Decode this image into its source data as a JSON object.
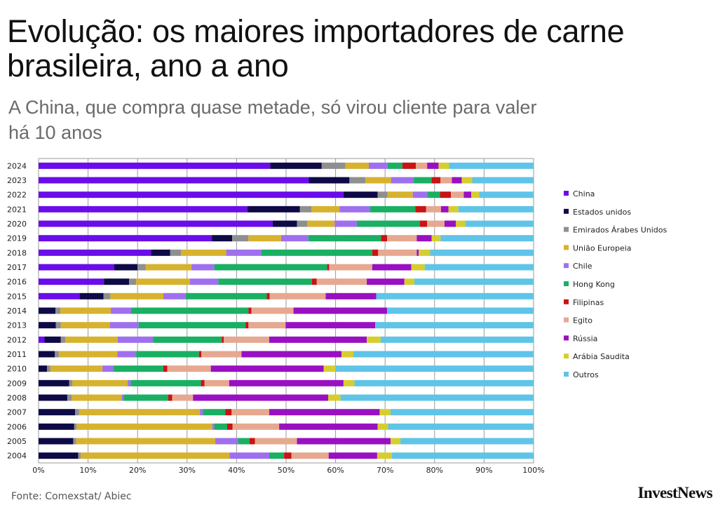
{
  "title": "Evolução: os maiores importadores de carne brasileira, ano a ano",
  "subtitle": "A China, que compra quase metade, só virou cliente para valer há 10 anos",
  "source": "Fonte: Comexstat/ Abiec",
  "brand": "InvestNews",
  "chart_data": {
    "type": "bar",
    "orientation": "horizontal",
    "stacked": "100%",
    "title": "Evolução: os maiores importadores de carne brasileira, ano a ano",
    "xlabel": "",
    "ylabel": "",
    "xlim": [
      0,
      100
    ],
    "x_ticks": [
      "0%",
      "10%",
      "20%",
      "30%",
      "40%",
      "50%",
      "60%",
      "70%",
      "80%",
      "90%",
      "100%"
    ],
    "grid": true,
    "legend_position": "right",
    "categories": [
      "2024",
      "2023",
      "2022",
      "2021",
      "2020",
      "2019",
      "2018",
      "2017",
      "2016",
      "2015",
      "2014",
      "2013",
      "2012",
      "2011",
      "2010",
      "2009",
      "2008",
      "2007",
      "2006",
      "2005",
      "2004"
    ],
    "series": [
      {
        "name": "China",
        "color": "#6a0dea",
        "values": [
          46.8,
          54.6,
          61.6,
          42.2,
          47.3,
          35.0,
          22.7,
          15.3,
          13.2,
          8.3,
          0,
          0,
          1.2,
          0,
          0,
          0,
          0,
          0,
          0,
          0,
          0
        ]
      },
      {
        "name": "Estados unidos",
        "color": "#0e0a46",
        "values": [
          10.4,
          8.2,
          6.9,
          10.6,
          4.9,
          4.1,
          3.9,
          4.7,
          5.1,
          4.8,
          3.4,
          3.5,
          3.3,
          3.3,
          1.7,
          6.2,
          5.8,
          7.4,
          7.2,
          7.0,
          8.0
        ]
      },
      {
        "name": "Emirados Árabes Unidos",
        "color": "#8f8f8f",
        "values": [
          4.8,
          3.2,
          2.0,
          2.3,
          2.1,
          3.3,
          2.2,
          1.6,
          1.4,
          1.4,
          1.0,
          1.0,
          0.9,
          0.8,
          0.7,
          0.6,
          0.9,
          0.8,
          0.5,
          0.6,
          0.5
        ]
      },
      {
        "name": "União Europeia",
        "color": "#d7b22e",
        "values": [
          4.7,
          5.2,
          5.1,
          5.7,
          5.5,
          6.6,
          9.1,
          9.3,
          10.9,
          10.7,
          10.2,
          9.9,
          10.6,
          11.8,
          10.5,
          11.2,
          10.1,
          24.4,
          27.4,
          28.1,
          30.1
        ]
      },
      {
        "name": "Chile",
        "color": "#9f70ee",
        "values": [
          3.8,
          4.6,
          2.9,
          6.2,
          4.5,
          5.5,
          7.1,
          4.6,
          5.7,
          4.5,
          4.1,
          5.8,
          7.1,
          3.8,
          2.2,
          0.6,
          0.4,
          0.6,
          0.4,
          4.6,
          8.0
        ]
      },
      {
        "name": "Hong Kong",
        "color": "#1aaf63",
        "values": [
          3.0,
          3.6,
          2.6,
          9.1,
          12.7,
          14.7,
          22.4,
          22.8,
          18.9,
          16.4,
          23.7,
          21.6,
          13.9,
          12.7,
          10.1,
          14.2,
          9.0,
          4.5,
          2.6,
          2.3,
          3.0
        ]
      },
      {
        "name": "Filipinas",
        "color": "#c81414",
        "values": [
          2.7,
          1.8,
          2.2,
          2.2,
          1.5,
          1.2,
          1.2,
          0.4,
          1.0,
          0.6,
          0.6,
          0.6,
          0.4,
          0.5,
          0.8,
          0.7,
          0.8,
          1.3,
          1.1,
          1.1,
          1.5
        ]
      },
      {
        "name": "Egito",
        "color": "#e6a890",
        "values": [
          2.3,
          2.3,
          2.6,
          3.0,
          3.5,
          6.0,
          7.8,
          8.7,
          10.1,
          11.3,
          8.5,
          7.5,
          9.2,
          8.1,
          8.8,
          5.0,
          4.2,
          7.6,
          9.4,
          8.5,
          7.5
        ]
      },
      {
        "name": "Rússia",
        "color": "#9910c2",
        "values": [
          2.3,
          2.0,
          1.5,
          1.5,
          2.3,
          3.0,
          0.4,
          7.9,
          7.6,
          10.2,
          18.9,
          18.1,
          19.7,
          20.2,
          22.8,
          23.1,
          27.3,
          22.3,
          19.9,
          18.9,
          9.8
        ]
      },
      {
        "name": "Arábia Saudita",
        "color": "#d6ce2e",
        "values": [
          2.1,
          2.1,
          1.6,
          2.0,
          1.9,
          1.8,
          2.3,
          2.7,
          2.0,
          0,
          0,
          0,
          2.8,
          2.4,
          2.4,
          2.2,
          2.5,
          2.2,
          2.1,
          2.0,
          3.0
        ]
      },
      {
        "name": "Outros",
        "color": "#5fc4e8",
        "values": [
          17.1,
          12.4,
          11.0,
          15.2,
          13.8,
          18.8,
          20.9,
          22.0,
          24.1,
          31.8,
          29.6,
          32.0,
          30.9,
          36.4,
          40.0,
          36.2,
          39.0,
          28.9,
          29.4,
          26.9,
          28.6
        ]
      }
    ]
  }
}
